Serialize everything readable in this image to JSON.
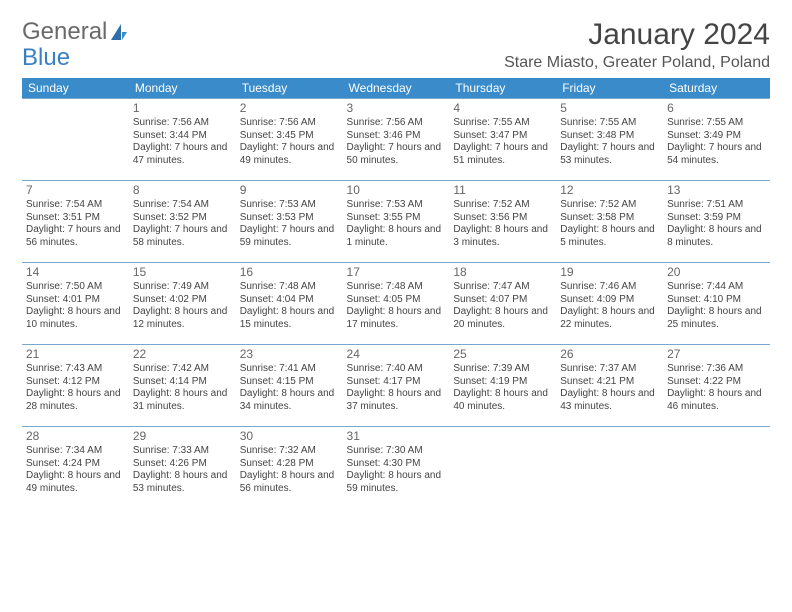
{
  "logo": {
    "text_general": "General",
    "text_blue": "Blue"
  },
  "title": "January 2024",
  "location": "Stare Miasto, Greater Poland, Poland",
  "colors": {
    "header_bg": "#3a8bc9",
    "header_fg": "#ffffff",
    "row_border": "#7aa6c9",
    "body_text": "#444444",
    "logo_gray": "#6a6a6a",
    "logo_blue": "#3a7fc4",
    "page_bg": "#ffffff"
  },
  "typography": {
    "title_fontsize": 30,
    "location_fontsize": 16,
    "dayname_fontsize": 12,
    "cell_fontsize": 10,
    "daynum_fontsize": 12
  },
  "day_names": [
    "Sunday",
    "Monday",
    "Tuesday",
    "Wednesday",
    "Thursday",
    "Friday",
    "Saturday"
  ],
  "weeks": [
    [
      {
        "n": "",
        "sr": "",
        "ss": "",
        "dl": ""
      },
      {
        "n": "1",
        "sr": "Sunrise: 7:56 AM",
        "ss": "Sunset: 3:44 PM",
        "dl": "Daylight: 7 hours and 47 minutes."
      },
      {
        "n": "2",
        "sr": "Sunrise: 7:56 AM",
        "ss": "Sunset: 3:45 PM",
        "dl": "Daylight: 7 hours and 49 minutes."
      },
      {
        "n": "3",
        "sr": "Sunrise: 7:56 AM",
        "ss": "Sunset: 3:46 PM",
        "dl": "Daylight: 7 hours and 50 minutes."
      },
      {
        "n": "4",
        "sr": "Sunrise: 7:55 AM",
        "ss": "Sunset: 3:47 PM",
        "dl": "Daylight: 7 hours and 51 minutes."
      },
      {
        "n": "5",
        "sr": "Sunrise: 7:55 AM",
        "ss": "Sunset: 3:48 PM",
        "dl": "Daylight: 7 hours and 53 minutes."
      },
      {
        "n": "6",
        "sr": "Sunrise: 7:55 AM",
        "ss": "Sunset: 3:49 PM",
        "dl": "Daylight: 7 hours and 54 minutes."
      }
    ],
    [
      {
        "n": "7",
        "sr": "Sunrise: 7:54 AM",
        "ss": "Sunset: 3:51 PM",
        "dl": "Daylight: 7 hours and 56 minutes."
      },
      {
        "n": "8",
        "sr": "Sunrise: 7:54 AM",
        "ss": "Sunset: 3:52 PM",
        "dl": "Daylight: 7 hours and 58 minutes."
      },
      {
        "n": "9",
        "sr": "Sunrise: 7:53 AM",
        "ss": "Sunset: 3:53 PM",
        "dl": "Daylight: 7 hours and 59 minutes."
      },
      {
        "n": "10",
        "sr": "Sunrise: 7:53 AM",
        "ss": "Sunset: 3:55 PM",
        "dl": "Daylight: 8 hours and 1 minute."
      },
      {
        "n": "11",
        "sr": "Sunrise: 7:52 AM",
        "ss": "Sunset: 3:56 PM",
        "dl": "Daylight: 8 hours and 3 minutes."
      },
      {
        "n": "12",
        "sr": "Sunrise: 7:52 AM",
        "ss": "Sunset: 3:58 PM",
        "dl": "Daylight: 8 hours and 5 minutes."
      },
      {
        "n": "13",
        "sr": "Sunrise: 7:51 AM",
        "ss": "Sunset: 3:59 PM",
        "dl": "Daylight: 8 hours and 8 minutes."
      }
    ],
    [
      {
        "n": "14",
        "sr": "Sunrise: 7:50 AM",
        "ss": "Sunset: 4:01 PM",
        "dl": "Daylight: 8 hours and 10 minutes."
      },
      {
        "n": "15",
        "sr": "Sunrise: 7:49 AM",
        "ss": "Sunset: 4:02 PM",
        "dl": "Daylight: 8 hours and 12 minutes."
      },
      {
        "n": "16",
        "sr": "Sunrise: 7:48 AM",
        "ss": "Sunset: 4:04 PM",
        "dl": "Daylight: 8 hours and 15 minutes."
      },
      {
        "n": "17",
        "sr": "Sunrise: 7:48 AM",
        "ss": "Sunset: 4:05 PM",
        "dl": "Daylight: 8 hours and 17 minutes."
      },
      {
        "n": "18",
        "sr": "Sunrise: 7:47 AM",
        "ss": "Sunset: 4:07 PM",
        "dl": "Daylight: 8 hours and 20 minutes."
      },
      {
        "n": "19",
        "sr": "Sunrise: 7:46 AM",
        "ss": "Sunset: 4:09 PM",
        "dl": "Daylight: 8 hours and 22 minutes."
      },
      {
        "n": "20",
        "sr": "Sunrise: 7:44 AM",
        "ss": "Sunset: 4:10 PM",
        "dl": "Daylight: 8 hours and 25 minutes."
      }
    ],
    [
      {
        "n": "21",
        "sr": "Sunrise: 7:43 AM",
        "ss": "Sunset: 4:12 PM",
        "dl": "Daylight: 8 hours and 28 minutes."
      },
      {
        "n": "22",
        "sr": "Sunrise: 7:42 AM",
        "ss": "Sunset: 4:14 PM",
        "dl": "Daylight: 8 hours and 31 minutes."
      },
      {
        "n": "23",
        "sr": "Sunrise: 7:41 AM",
        "ss": "Sunset: 4:15 PM",
        "dl": "Daylight: 8 hours and 34 minutes."
      },
      {
        "n": "24",
        "sr": "Sunrise: 7:40 AM",
        "ss": "Sunset: 4:17 PM",
        "dl": "Daylight: 8 hours and 37 minutes."
      },
      {
        "n": "25",
        "sr": "Sunrise: 7:39 AM",
        "ss": "Sunset: 4:19 PM",
        "dl": "Daylight: 8 hours and 40 minutes."
      },
      {
        "n": "26",
        "sr": "Sunrise: 7:37 AM",
        "ss": "Sunset: 4:21 PM",
        "dl": "Daylight: 8 hours and 43 minutes."
      },
      {
        "n": "27",
        "sr": "Sunrise: 7:36 AM",
        "ss": "Sunset: 4:22 PM",
        "dl": "Daylight: 8 hours and 46 minutes."
      }
    ],
    [
      {
        "n": "28",
        "sr": "Sunrise: 7:34 AM",
        "ss": "Sunset: 4:24 PM",
        "dl": "Daylight: 8 hours and 49 minutes."
      },
      {
        "n": "29",
        "sr": "Sunrise: 7:33 AM",
        "ss": "Sunset: 4:26 PM",
        "dl": "Daylight: 8 hours and 53 minutes."
      },
      {
        "n": "30",
        "sr": "Sunrise: 7:32 AM",
        "ss": "Sunset: 4:28 PM",
        "dl": "Daylight: 8 hours and 56 minutes."
      },
      {
        "n": "31",
        "sr": "Sunrise: 7:30 AM",
        "ss": "Sunset: 4:30 PM",
        "dl": "Daylight: 8 hours and 59 minutes."
      },
      {
        "n": "",
        "sr": "",
        "ss": "",
        "dl": ""
      },
      {
        "n": "",
        "sr": "",
        "ss": "",
        "dl": ""
      },
      {
        "n": "",
        "sr": "",
        "ss": "",
        "dl": ""
      }
    ]
  ]
}
